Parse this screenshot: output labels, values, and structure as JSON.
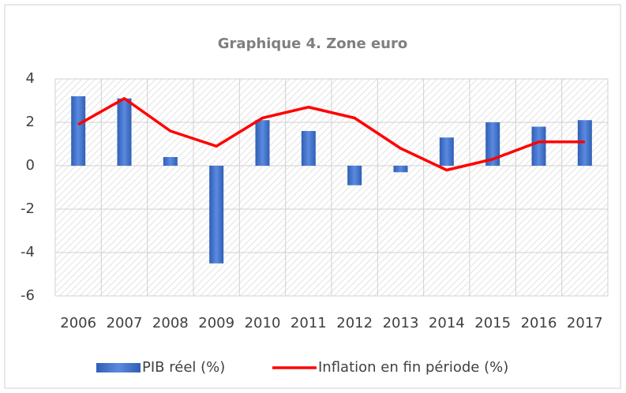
{
  "chart_data": {
    "type": "bar",
    "title": "Graphique 4.  Zone euro",
    "categories": [
      "2006",
      "2007",
      "2008",
      "2009",
      "2010",
      "2011",
      "2012",
      "2013",
      "2014",
      "2015",
      "2016",
      "2017"
    ],
    "series": [
      {
        "name": "PIB réel (%)",
        "type": "bar",
        "color": "#4472c4",
        "values": [
          3.2,
          3.1,
          0.4,
          -4.5,
          2.1,
          1.6,
          -0.9,
          -0.3,
          1.3,
          2.0,
          1.8,
          2.1
        ]
      },
      {
        "name": "Inflation en fin période (%)",
        "type": "line",
        "color": "#ff0000",
        "values": [
          1.9,
          3.1,
          1.6,
          0.9,
          2.2,
          2.7,
          2.2,
          0.8,
          -0.2,
          0.3,
          1.1,
          1.1
        ]
      }
    ],
    "ylim": [
      -6,
      4
    ],
    "yticks": [
      -6,
      -4,
      -2,
      0,
      2,
      4
    ],
    "grid": true,
    "legend": "bottom"
  }
}
